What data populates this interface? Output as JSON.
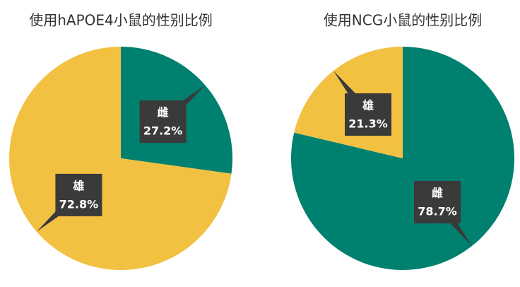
{
  "chart_data": [
    {
      "type": "pie",
      "title": "使用hAPOE4小鼠的性别比例",
      "categories": [
        "雌",
        "雄"
      ],
      "values": [
        27.2,
        72.8
      ],
      "value_labels": [
        "27.2%",
        "72.8%"
      ],
      "colors": [
        "#00806f",
        "#f2c141"
      ]
    },
    {
      "type": "pie",
      "title": "使用NCG小鼠的性别比例",
      "categories": [
        "雌",
        "雄"
      ],
      "values": [
        78.7,
        21.3
      ],
      "value_labels": [
        "78.7%",
        "21.3%"
      ],
      "colors": [
        "#00806f",
        "#f2c141"
      ]
    }
  ]
}
